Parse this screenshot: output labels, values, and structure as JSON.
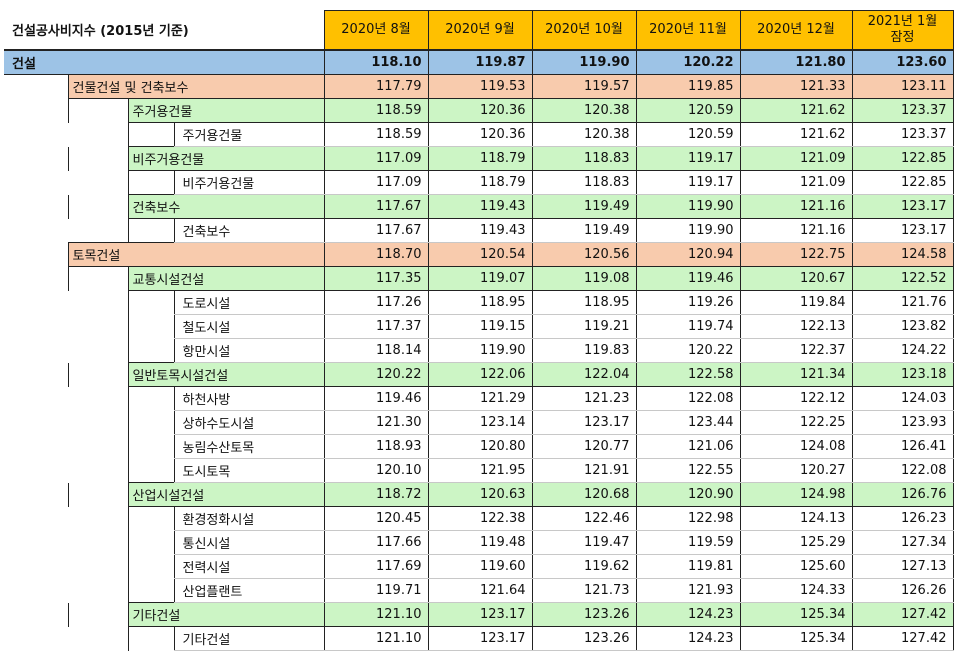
{
  "table": {
    "title": "건설공사비지수 (2015년 기준)",
    "columns": [
      "2020년 8월",
      "2020년 9월",
      "2020년 10월",
      "2020년 11월",
      "2020년 12월",
      "2021년 1월\n잠정"
    ],
    "rows": [
      {
        "level": 0,
        "label": "건설",
        "values": [
          "118.10",
          "119.87",
          "119.90",
          "120.22",
          "121.80",
          "123.60"
        ]
      },
      {
        "level": 1,
        "label": "건물건설 및 건축보수",
        "values": [
          "117.79",
          "119.53",
          "119.57",
          "119.85",
          "121.33",
          "123.11"
        ]
      },
      {
        "level": 2,
        "label": "주거용건물",
        "values": [
          "118.59",
          "120.36",
          "120.38",
          "120.59",
          "121.62",
          "123.37"
        ]
      },
      {
        "level": 3,
        "label": "주거용건물",
        "values": [
          "118.59",
          "120.36",
          "120.38",
          "120.59",
          "121.62",
          "123.37"
        ]
      },
      {
        "level": 2,
        "label": "비주거용건물",
        "values": [
          "117.09",
          "118.79",
          "118.83",
          "119.17",
          "121.09",
          "122.85"
        ]
      },
      {
        "level": 3,
        "label": "비주거용건물",
        "values": [
          "117.09",
          "118.79",
          "118.83",
          "119.17",
          "121.09",
          "122.85"
        ]
      },
      {
        "level": 2,
        "label": "건축보수",
        "values": [
          "117.67",
          "119.43",
          "119.49",
          "119.90",
          "121.16",
          "123.17"
        ]
      },
      {
        "level": 3,
        "label": "건축보수",
        "values": [
          "117.67",
          "119.43",
          "119.49",
          "119.90",
          "121.16",
          "123.17"
        ]
      },
      {
        "level": 1,
        "label": "토목건설",
        "values": [
          "118.70",
          "120.54",
          "120.56",
          "120.94",
          "122.75",
          "124.58"
        ]
      },
      {
        "level": 2,
        "label": "교통시설건설",
        "values": [
          "117.35",
          "119.07",
          "119.08",
          "119.46",
          "120.67",
          "122.52"
        ]
      },
      {
        "level": 3,
        "label": "도로시설",
        "values": [
          "117.26",
          "118.95",
          "118.95",
          "119.26",
          "119.84",
          "121.76"
        ]
      },
      {
        "level": 3,
        "label": "철도시설",
        "values": [
          "117.37",
          "119.15",
          "119.21",
          "119.74",
          "122.13",
          "123.82"
        ]
      },
      {
        "level": 3,
        "label": "항만시설",
        "values": [
          "118.14",
          "119.90",
          "119.83",
          "120.22",
          "122.37",
          "124.22"
        ]
      },
      {
        "level": 2,
        "label": "일반토목시설건설",
        "values": [
          "120.22",
          "122.06",
          "122.04",
          "122.58",
          "121.34",
          "123.18"
        ]
      },
      {
        "level": 3,
        "label": "하천사방",
        "values": [
          "119.46",
          "121.29",
          "121.23",
          "122.08",
          "122.12",
          "124.03"
        ]
      },
      {
        "level": 3,
        "label": "상하수도시설",
        "values": [
          "121.30",
          "123.14",
          "123.17",
          "123.44",
          "122.25",
          "123.93"
        ]
      },
      {
        "level": 3,
        "label": "농림수산토목",
        "values": [
          "118.93",
          "120.80",
          "120.77",
          "121.06",
          "124.08",
          "126.41"
        ]
      },
      {
        "level": 3,
        "label": "도시토목",
        "values": [
          "120.10",
          "121.95",
          "121.91",
          "122.55",
          "120.27",
          "122.08"
        ]
      },
      {
        "level": 2,
        "label": "산업시설건설",
        "values": [
          "118.72",
          "120.63",
          "120.68",
          "120.90",
          "124.98",
          "126.76"
        ]
      },
      {
        "level": 3,
        "label": "환경정화시설",
        "values": [
          "120.45",
          "122.38",
          "122.46",
          "122.98",
          "124.13",
          "126.23"
        ]
      },
      {
        "level": 3,
        "label": "통신시설",
        "values": [
          "117.66",
          "119.48",
          "119.47",
          "119.59",
          "125.29",
          "127.34"
        ]
      },
      {
        "level": 3,
        "label": "전력시설",
        "values": [
          "117.69",
          "119.60",
          "119.62",
          "119.81",
          "125.60",
          "127.13"
        ]
      },
      {
        "level": 3,
        "label": "산업플랜트",
        "values": [
          "119.71",
          "121.64",
          "121.73",
          "121.93",
          "124.33",
          "126.26"
        ]
      },
      {
        "level": 2,
        "label": "기타건설",
        "values": [
          "121.10",
          "123.17",
          "123.26",
          "124.23",
          "125.34",
          "127.42"
        ]
      },
      {
        "level": 3,
        "label": "기타건설",
        "values": [
          "121.10",
          "123.17",
          "123.26",
          "124.23",
          "125.34",
          "127.42"
        ]
      }
    ]
  }
}
